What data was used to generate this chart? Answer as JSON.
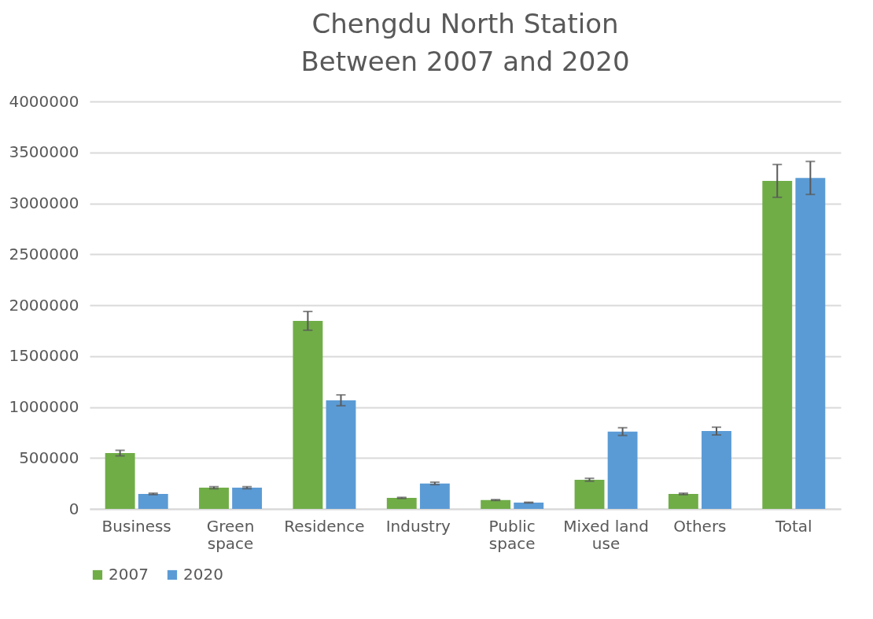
{
  "chart_data": {
    "type": "bar",
    "title": "Chengdu North Station\nBetween 2007 and 2020",
    "categories": [
      "Business",
      "Green space",
      "Residence",
      "Industry",
      "Public space",
      "Mixed land use",
      "Others",
      "Total"
    ],
    "series": [
      {
        "name": "2007",
        "color": "#70ad47",
        "values": [
          548000,
          208000,
          1846000,
          108000,
          87000,
          286000,
          147000,
          3220000
        ],
        "errors": [
          27000,
          10000,
          92000,
          5000,
          4000,
          14000,
          7000,
          161000
        ]
      },
      {
        "name": "2020",
        "color": "#5b9bd5",
        "values": [
          147000,
          208000,
          1066000,
          250000,
          62000,
          759000,
          764000,
          3249000
        ],
        "errors": [
          7000,
          10000,
          53000,
          12000,
          3000,
          38000,
          38000,
          162000
        ]
      }
    ],
    "ylim": [
      0,
      4000000
    ],
    "yticks": [
      0,
      500000,
      1000000,
      1500000,
      2000000,
      2500000,
      3000000,
      3500000,
      4000000
    ],
    "grid": "y",
    "legend": "bottom"
  }
}
